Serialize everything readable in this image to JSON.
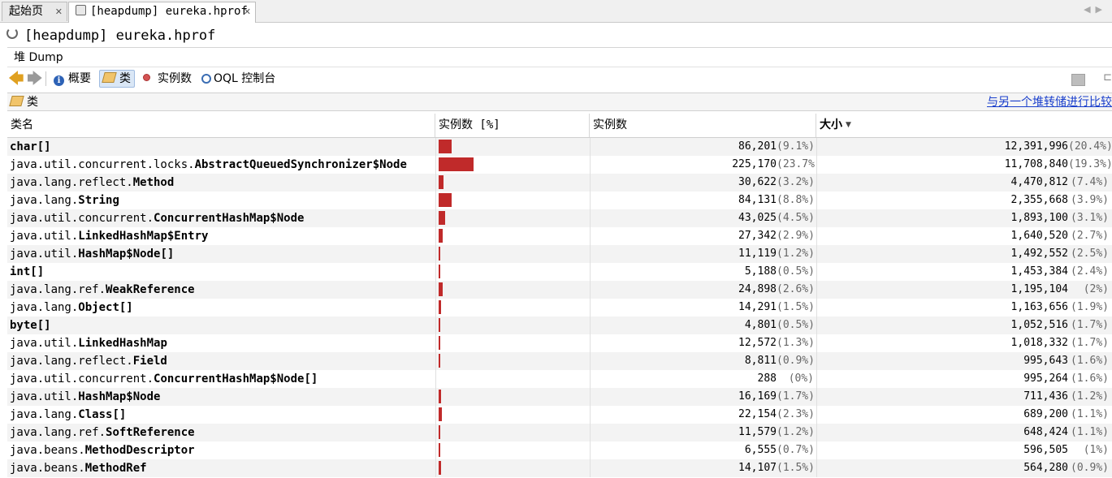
{
  "tabs": [
    {
      "label": "起始页",
      "active": false
    },
    {
      "label": "[heapdump] eureka.hprof",
      "active": true
    }
  ],
  "title": "[heapdump] eureka.hprof",
  "subtab": "堆 Dump",
  "toolbar": {
    "summary": "概要",
    "classes": "类",
    "instances": "实例数",
    "oql": "OQL 控制台"
  },
  "panel": {
    "title": "类",
    "compare_link": "与另一个堆转储进行比较"
  },
  "columns": {
    "name": "类名",
    "instances_pct": "实例数 [%]",
    "instances": "实例数",
    "size": "大小"
  },
  "sort": {
    "column": "size",
    "order": "descending"
  },
  "rows": [
    {
      "pkg": "",
      "cls": "char[]",
      "bar": 0.091,
      "instances": "86,201",
      "inst_pct": "(9.1%)",
      "size": "12,391,996",
      "size_pct": "(20.4%)"
    },
    {
      "pkg": "java.util.concurrent.locks.",
      "cls": "AbstractQueuedSynchronizer$Node",
      "bar": 0.237,
      "instances": "225,170",
      "inst_pct": "(23.7%)",
      "size": "11,708,840",
      "size_pct": "(19.3%)"
    },
    {
      "pkg": "java.lang.reflect.",
      "cls": "Method",
      "bar": 0.032,
      "instances": "30,622",
      "inst_pct": "(3.2%)",
      "size": "4,470,812",
      "size_pct": "(7.4%)"
    },
    {
      "pkg": "java.lang.",
      "cls": "String",
      "bar": 0.088,
      "instances": "84,131",
      "inst_pct": "(8.8%)",
      "size": "2,355,668",
      "size_pct": "(3.9%)"
    },
    {
      "pkg": "java.util.concurrent.",
      "cls": "ConcurrentHashMap$Node",
      "bar": 0.045,
      "instances": "43,025",
      "inst_pct": "(4.5%)",
      "size": "1,893,100",
      "size_pct": "(3.1%)"
    },
    {
      "pkg": "java.util.",
      "cls": "LinkedHashMap$Entry",
      "bar": 0.029,
      "instances": "27,342",
      "inst_pct": "(2.9%)",
      "size": "1,640,520",
      "size_pct": "(2.7%)"
    },
    {
      "pkg": "java.util.",
      "cls": "HashMap$Node[]",
      "bar": 0.012,
      "instances": "11,119",
      "inst_pct": "(1.2%)",
      "size": "1,492,552",
      "size_pct": "(2.5%)"
    },
    {
      "pkg": "",
      "cls": "int[]",
      "bar": 0.005,
      "instances": "5,188",
      "inst_pct": "(0.5%)",
      "size": "1,453,384",
      "size_pct": "(2.4%)"
    },
    {
      "pkg": "java.lang.ref.",
      "cls": "WeakReference",
      "bar": 0.026,
      "instances": "24,898",
      "inst_pct": "(2.6%)",
      "size": "1,195,104",
      "size_pct": "(2%)"
    },
    {
      "pkg": "java.lang.",
      "cls": "Object[]",
      "bar": 0.015,
      "instances": "14,291",
      "inst_pct": "(1.5%)",
      "size": "1,163,656",
      "size_pct": "(1.9%)"
    },
    {
      "pkg": "",
      "cls": "byte[]",
      "bar": 0.005,
      "instances": "4,801",
      "inst_pct": "(0.5%)",
      "size": "1,052,516",
      "size_pct": "(1.7%)"
    },
    {
      "pkg": "java.util.",
      "cls": "LinkedHashMap",
      "bar": 0.013,
      "instances": "12,572",
      "inst_pct": "(1.3%)",
      "size": "1,018,332",
      "size_pct": "(1.7%)"
    },
    {
      "pkg": "java.lang.reflect.",
      "cls": "Field",
      "bar": 0.009,
      "instances": "8,811",
      "inst_pct": "(0.9%)",
      "size": "995,643",
      "size_pct": "(1.6%)"
    },
    {
      "pkg": "java.util.concurrent.",
      "cls": "ConcurrentHashMap$Node[]",
      "bar": 0.0,
      "instances": "288",
      "inst_pct": "(0%)",
      "size": "995,264",
      "size_pct": "(1.6%)"
    },
    {
      "pkg": "java.util.",
      "cls": "HashMap$Node",
      "bar": 0.017,
      "instances": "16,169",
      "inst_pct": "(1.7%)",
      "size": "711,436",
      "size_pct": "(1.2%)"
    },
    {
      "pkg": "java.lang.",
      "cls": "Class[]",
      "bar": 0.023,
      "instances": "22,154",
      "inst_pct": "(2.3%)",
      "size": "689,200",
      "size_pct": "(1.1%)"
    },
    {
      "pkg": "java.lang.ref.",
      "cls": "SoftReference",
      "bar": 0.012,
      "instances": "11,579",
      "inst_pct": "(1.2%)",
      "size": "648,424",
      "size_pct": "(1.1%)"
    },
    {
      "pkg": "java.beans.",
      "cls": "MethodDescriptor",
      "bar": 0.007,
      "instances": "6,555",
      "inst_pct": "(0.7%)",
      "size": "596,505",
      "size_pct": "(1%)"
    },
    {
      "pkg": "java.beans.",
      "cls": "MethodRef",
      "bar": 0.015,
      "instances": "14,107",
      "inst_pct": "(1.5%)",
      "size": "564,280",
      "size_pct": "(0.9%)"
    }
  ]
}
